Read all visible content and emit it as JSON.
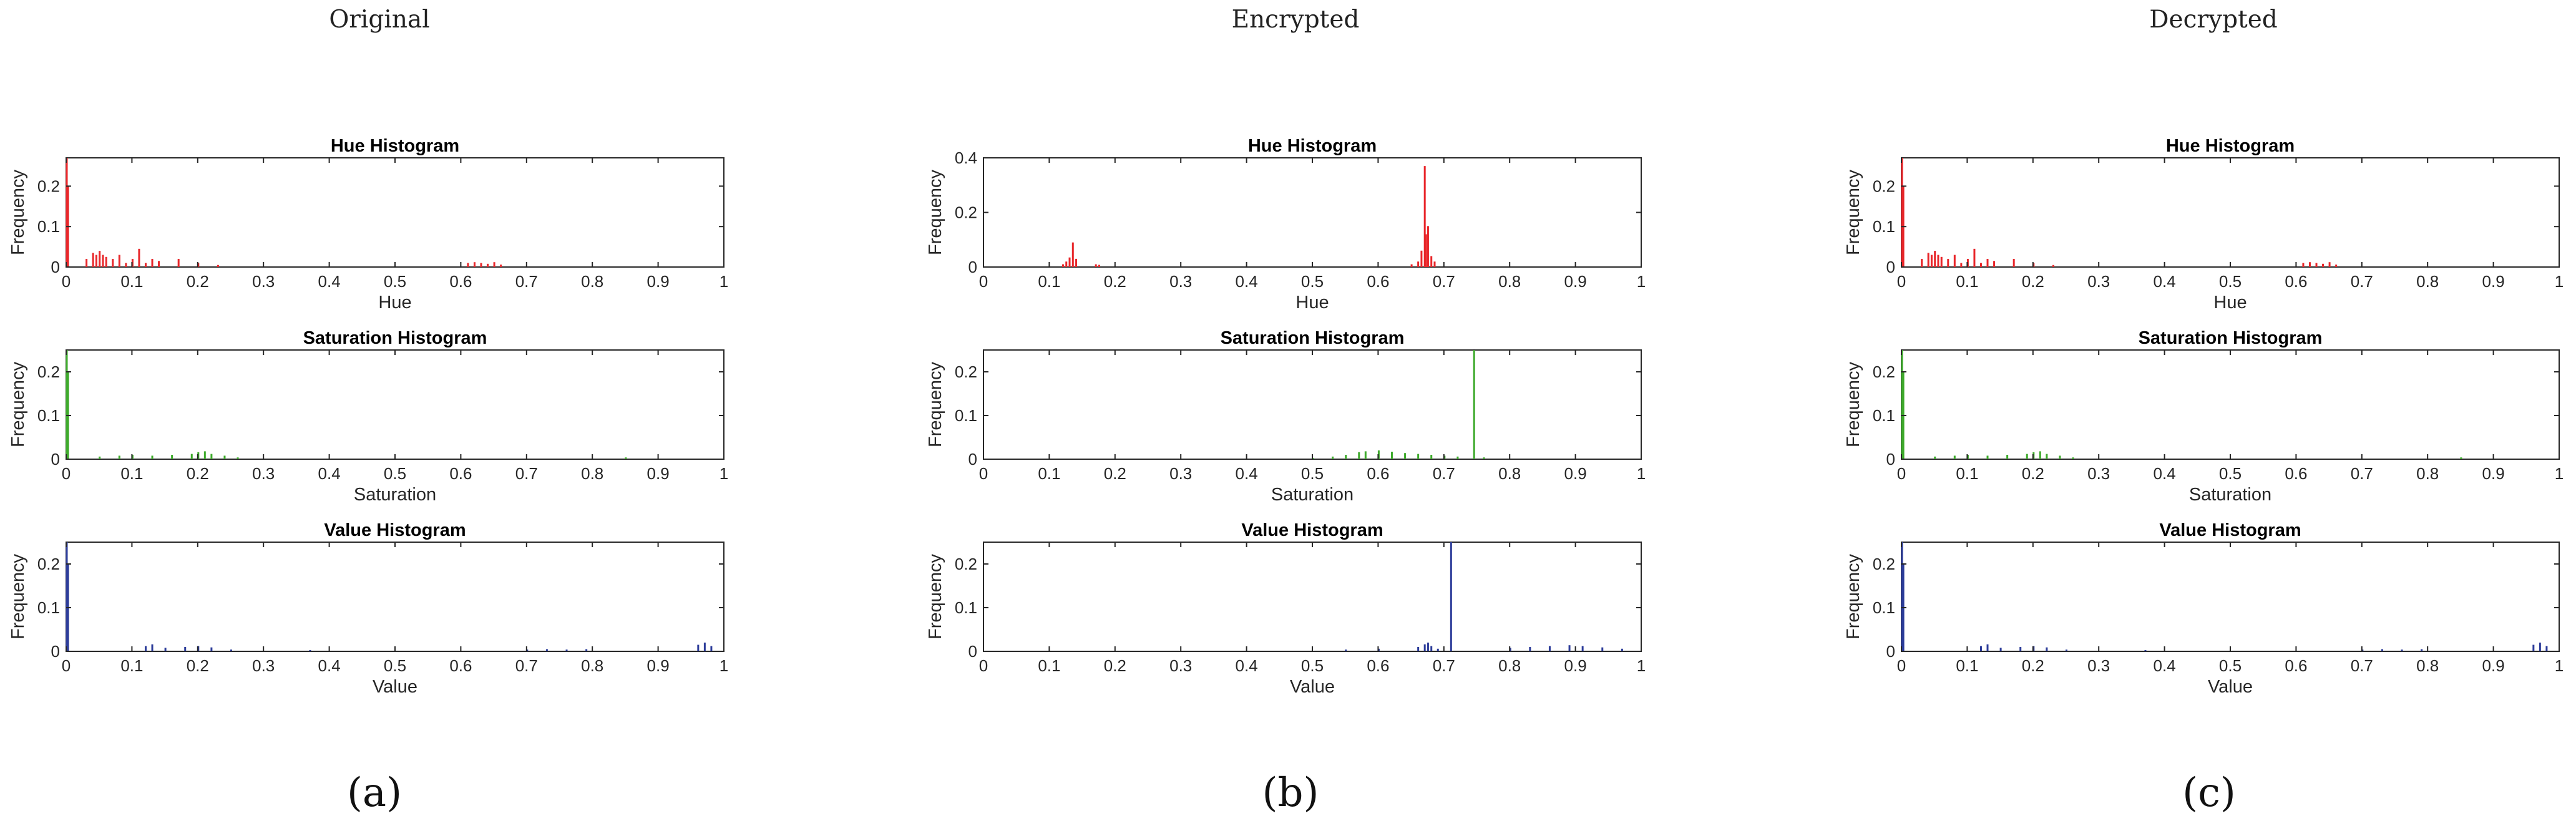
{
  "columns": [
    {
      "title": "Original",
      "panel": "(a)"
    },
    {
      "title": "Encrypted",
      "panel": "(b)"
    },
    {
      "title": "Decrypted",
      "panel": "(c)"
    }
  ],
  "colors": {
    "hue": "#e8262a",
    "saturation": "#3eaa2c",
    "value": "#2d3d9a",
    "axis": "#262626"
  },
  "chart_data": [
    {
      "type": "bar",
      "column": "Original",
      "channel": "hue",
      "title": "Hue Histogram",
      "xlabel": "Hue",
      "ylabel": "Frequency",
      "xlim": [
        0,
        1
      ],
      "ylim": [
        0,
        0.27
      ],
      "xticks": [
        "0",
        "0.1",
        "0.2",
        "0.3",
        "0.4",
        "0.5",
        "0.6",
        "0.7",
        "0.8",
        "0.9",
        "1"
      ],
      "yticks": [
        "0",
        "0.1",
        "0.2"
      ],
      "x": [
        0.0,
        0.002,
        0.03,
        0.04,
        0.045,
        0.05,
        0.055,
        0.06,
        0.07,
        0.08,
        0.09,
        0.1,
        0.11,
        0.12,
        0.13,
        0.14,
        0.17,
        0.2,
        0.23,
        0.61,
        0.62,
        0.63,
        0.64,
        0.65,
        0.66
      ],
      "values": [
        0.27,
        0.2,
        0.02,
        0.035,
        0.03,
        0.04,
        0.03,
        0.025,
        0.02,
        0.03,
        0.01,
        0.02,
        0.045,
        0.01,
        0.02,
        0.015,
        0.02,
        0.01,
        0.005,
        0.01,
        0.012,
        0.01,
        0.008,
        0.012,
        0.006
      ]
    },
    {
      "type": "bar",
      "column": "Original",
      "channel": "saturation",
      "title": "Saturation Histogram",
      "xlabel": "Saturation",
      "ylabel": "Frequency",
      "xlim": [
        0,
        1
      ],
      "ylim": [
        0,
        0.25
      ],
      "xticks": [
        "0",
        "0.1",
        "0.2",
        "0.3",
        "0.4",
        "0.5",
        "0.6",
        "0.7",
        "0.8",
        "0.9",
        "1"
      ],
      "yticks": [
        "0",
        "0.1",
        "0.2"
      ],
      "x": [
        0.0,
        0.002,
        0.05,
        0.08,
        0.1,
        0.13,
        0.16,
        0.19,
        0.2,
        0.21,
        0.22,
        0.24,
        0.26,
        0.85
      ],
      "values": [
        0.25,
        0.2,
        0.006,
        0.008,
        0.01,
        0.008,
        0.01,
        0.012,
        0.016,
        0.018,
        0.012,
        0.008,
        0.004,
        0.004
      ]
    },
    {
      "type": "bar",
      "column": "Original",
      "channel": "value",
      "title": "Value Histogram",
      "xlabel": "Value",
      "ylabel": "Frequency",
      "xlim": [
        0,
        1
      ],
      "ylim": [
        0,
        0.25
      ],
      "xticks": [
        "0",
        "0.1",
        "0.2",
        "0.3",
        "0.4",
        "0.5",
        "0.6",
        "0.7",
        "0.8",
        "0.9",
        "1"
      ],
      "yticks": [
        "0",
        "0.1",
        "0.2"
      ],
      "x": [
        0.0,
        0.002,
        0.12,
        0.13,
        0.15,
        0.18,
        0.2,
        0.22,
        0.25,
        0.37,
        0.7,
        0.73,
        0.76,
        0.79,
        0.96,
        0.97,
        0.98
      ],
      "values": [
        0.25,
        0.2,
        0.012,
        0.016,
        0.008,
        0.01,
        0.012,
        0.009,
        0.004,
        0.003,
        0.004,
        0.005,
        0.004,
        0.005,
        0.015,
        0.02,
        0.012
      ]
    },
    {
      "type": "bar",
      "column": "Encrypted",
      "channel": "hue",
      "title": "Hue Histogram",
      "xlabel": "Hue",
      "ylabel": "Frequency",
      "xlim": [
        0,
        1
      ],
      "ylim": [
        0,
        0.4
      ],
      "xticks": [
        "0",
        "0.1",
        "0.2",
        "0.3",
        "0.4",
        "0.5",
        "0.6",
        "0.7",
        "0.8",
        "0.9",
        "1"
      ],
      "yticks": [
        "0",
        "0.2",
        "0.4"
      ],
      "x": [
        0.12,
        0.125,
        0.13,
        0.135,
        0.14,
        0.17,
        0.175,
        0.65,
        0.66,
        0.665,
        0.67,
        0.672,
        0.675,
        0.68,
        0.685
      ],
      "values": [
        0.01,
        0.02,
        0.035,
        0.09,
        0.03,
        0.01,
        0.008,
        0.01,
        0.02,
        0.06,
        0.37,
        0.12,
        0.15,
        0.04,
        0.02
      ]
    },
    {
      "type": "bar",
      "column": "Encrypted",
      "channel": "saturation",
      "title": "Saturation Histogram",
      "xlabel": "Saturation",
      "ylabel": "Frequency",
      "xlim": [
        0,
        1
      ],
      "ylim": [
        0,
        0.25
      ],
      "xticks": [
        "0",
        "0.1",
        "0.2",
        "0.3",
        "0.4",
        "0.5",
        "0.6",
        "0.7",
        "0.8",
        "0.9",
        "1"
      ],
      "yticks": [
        "0",
        "0.1",
        "0.2"
      ],
      "x": [
        0.5,
        0.53,
        0.55,
        0.57,
        0.58,
        0.6,
        0.62,
        0.64,
        0.66,
        0.68,
        0.7,
        0.72,
        0.745,
        0.76
      ],
      "values": [
        0.003,
        0.006,
        0.01,
        0.016,
        0.018,
        0.02,
        0.017,
        0.014,
        0.012,
        0.01,
        0.008,
        0.006,
        0.25,
        0.004
      ]
    },
    {
      "type": "bar",
      "column": "Encrypted",
      "channel": "value",
      "title": "Value Histogram",
      "xlabel": "Value",
      "ylabel": "Frequency",
      "xlim": [
        0,
        1
      ],
      "ylim": [
        0,
        0.25
      ],
      "xticks": [
        "0",
        "0.1",
        "0.2",
        "0.3",
        "0.4",
        "0.5",
        "0.6",
        "0.7",
        "0.8",
        "0.9",
        "1"
      ],
      "yticks": [
        "0",
        "0.1",
        "0.2"
      ],
      "x": [
        0.55,
        0.6,
        0.66,
        0.67,
        0.675,
        0.68,
        0.69,
        0.71,
        0.8,
        0.83,
        0.86,
        0.89,
        0.91,
        0.94,
        0.97
      ],
      "values": [
        0.004,
        0.006,
        0.01,
        0.016,
        0.02,
        0.012,
        0.006,
        0.25,
        0.008,
        0.01,
        0.012,
        0.014,
        0.012,
        0.009,
        0.006
      ]
    },
    {
      "type": "bar",
      "column": "Decrypted",
      "channel": "hue",
      "title": "Hue Histogram",
      "xlabel": "Hue",
      "ylabel": "Frequency",
      "xlim": [
        0,
        1
      ],
      "ylim": [
        0,
        0.27
      ],
      "xticks": [
        "0",
        "0.1",
        "0.2",
        "0.3",
        "0.4",
        "0.5",
        "0.6",
        "0.7",
        "0.8",
        "0.9",
        "1"
      ],
      "yticks": [
        "0",
        "0.1",
        "0.2"
      ],
      "x": [
        0.0,
        0.002,
        0.03,
        0.04,
        0.045,
        0.05,
        0.055,
        0.06,
        0.07,
        0.08,
        0.09,
        0.1,
        0.11,
        0.12,
        0.13,
        0.14,
        0.17,
        0.2,
        0.23,
        0.61,
        0.62,
        0.63,
        0.64,
        0.65,
        0.66
      ],
      "values": [
        0.27,
        0.2,
        0.02,
        0.035,
        0.03,
        0.04,
        0.03,
        0.025,
        0.02,
        0.03,
        0.01,
        0.02,
        0.045,
        0.01,
        0.02,
        0.015,
        0.02,
        0.01,
        0.005,
        0.01,
        0.012,
        0.01,
        0.008,
        0.012,
        0.006
      ]
    },
    {
      "type": "bar",
      "column": "Decrypted",
      "channel": "saturation",
      "title": "Saturation Histogram",
      "xlabel": "Saturation",
      "ylabel": "Frequency",
      "xlim": [
        0,
        1
      ],
      "ylim": [
        0,
        0.25
      ],
      "xticks": [
        "0",
        "0.1",
        "0.2",
        "0.3",
        "0.4",
        "0.5",
        "0.6",
        "0.7",
        "0.8",
        "0.9",
        "1"
      ],
      "yticks": [
        "0",
        "0.1",
        "0.2"
      ],
      "x": [
        0.0,
        0.002,
        0.05,
        0.08,
        0.1,
        0.13,
        0.16,
        0.19,
        0.2,
        0.21,
        0.22,
        0.24,
        0.26,
        0.85
      ],
      "values": [
        0.25,
        0.2,
        0.006,
        0.008,
        0.01,
        0.008,
        0.01,
        0.012,
        0.016,
        0.018,
        0.012,
        0.008,
        0.004,
        0.004
      ]
    },
    {
      "type": "bar",
      "column": "Decrypted",
      "channel": "value",
      "title": "Value Histogram",
      "xlabel": "Value",
      "ylabel": "Frequency",
      "xlim": [
        0,
        1
      ],
      "ylim": [
        0,
        0.25
      ],
      "xticks": [
        "0",
        "0.1",
        "0.2",
        "0.3",
        "0.4",
        "0.5",
        "0.6",
        "0.7",
        "0.8",
        "0.9",
        "1"
      ],
      "yticks": [
        "0",
        "0.1",
        "0.2"
      ],
      "x": [
        0.0,
        0.002,
        0.12,
        0.13,
        0.15,
        0.18,
        0.2,
        0.22,
        0.25,
        0.37,
        0.7,
        0.73,
        0.76,
        0.79,
        0.96,
        0.97,
        0.98
      ],
      "values": [
        0.25,
        0.2,
        0.012,
        0.016,
        0.008,
        0.01,
        0.012,
        0.009,
        0.004,
        0.003,
        0.004,
        0.005,
        0.004,
        0.005,
        0.015,
        0.02,
        0.012
      ]
    }
  ]
}
